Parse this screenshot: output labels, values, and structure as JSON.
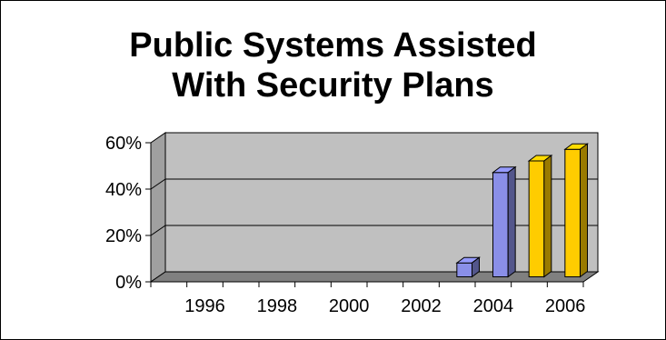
{
  "chart_data": {
    "type": "bar",
    "title_lines": [
      "Public Systems Assisted",
      "With Security Plans"
    ],
    "xlabel": "",
    "ylabel": "",
    "x_tick_labels": [
      "1996",
      "1998",
      "2000",
      "2002",
      "2004",
      "2006"
    ],
    "y_tick_labels": [
      "0%",
      "20%",
      "40%",
      "60%"
    ],
    "ylim": [
      0,
      60
    ],
    "xlim": [
      1995,
      2006
    ],
    "grid": true,
    "three_d": true,
    "bars": [
      {
        "x": 2003,
        "value": 6,
        "color": "#8a8fe8"
      },
      {
        "x": 2004,
        "value": 45,
        "color": "#8a8fe8"
      },
      {
        "x": 2005,
        "value": 50,
        "color": "#ffcc00"
      },
      {
        "x": 2006,
        "value": 55,
        "color": "#ffcc00"
      }
    ],
    "colors": {
      "wall": "#c0c0c0",
      "floor": "#808080",
      "blue_bar": "#8a8fe8",
      "gold_bar": "#ffcc00"
    }
  }
}
